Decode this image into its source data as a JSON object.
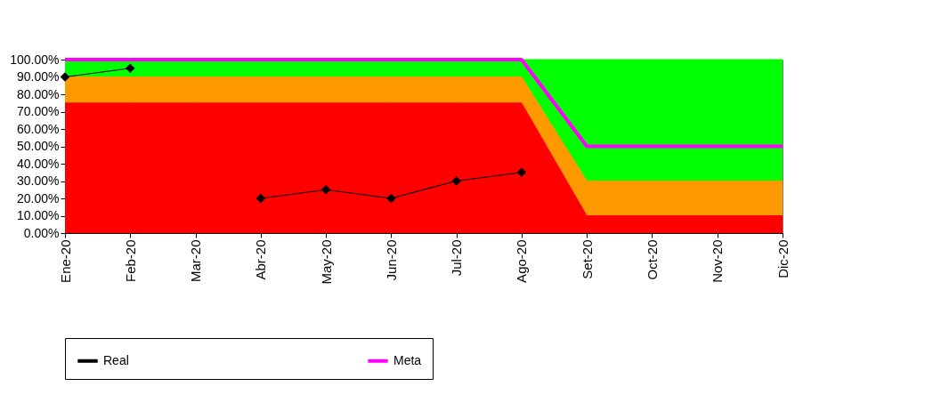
{
  "chart_data": {
    "type": "area",
    "stacked": true,
    "legend": "bottom",
    "grid": false,
    "categories": [
      "Ene-20",
      "Feb-20",
      "Mar-20",
      "Abr-20",
      "May-20",
      "Jun-20",
      "Jul-20",
      "Ago-20",
      "Set-20",
      "Oct-20",
      "Nov-20",
      "Dic-20"
    ],
    "ylim": [
      0,
      100
    ],
    "yticks": [
      {
        "value": 0,
        "label": "0.00%"
      },
      {
        "value": 10,
        "label": "10.00%"
      },
      {
        "value": 20,
        "label": "20.00%"
      },
      {
        "value": 30,
        "label": "30.00%"
      },
      {
        "value": 40,
        "label": "40.00%"
      },
      {
        "value": 50,
        "label": "50.00%"
      },
      {
        "value": 60,
        "label": "60.00%"
      },
      {
        "value": 70,
        "label": "70.00%"
      },
      {
        "value": 80,
        "label": "80.00%"
      },
      {
        "value": 90,
        "label": "90.00%"
      },
      {
        "value": 100,
        "label": "100.00%"
      }
    ],
    "series": [
      {
        "color": "#ff0000",
        "values": [
          75,
          75,
          75,
          75,
          75,
          75,
          75,
          75,
          10,
          10,
          10,
          10
        ]
      },
      {
        "color": "#ff9900",
        "values": [
          15,
          15,
          15,
          15,
          15,
          15,
          15,
          15,
          20,
          20,
          20,
          20
        ]
      },
      {
        "color": "#00ff00",
        "values": [
          10,
          10,
          10,
          10,
          10,
          10,
          10,
          10,
          70,
          70,
          70,
          70
        ]
      },
      {
        "type": "line",
        "name": "Real",
        "color": "#000000",
        "marker": "diamond",
        "values": [
          90,
          95,
          null,
          20,
          25,
          20,
          30,
          35,
          null,
          null,
          null,
          null
        ]
      },
      {
        "type": "line",
        "name": "Meta",
        "color": "#ff00ff",
        "marker": "none",
        "values": [
          100,
          100,
          100,
          100,
          100,
          100,
          100,
          100,
          50,
          50,
          50,
          50
        ]
      }
    ]
  }
}
